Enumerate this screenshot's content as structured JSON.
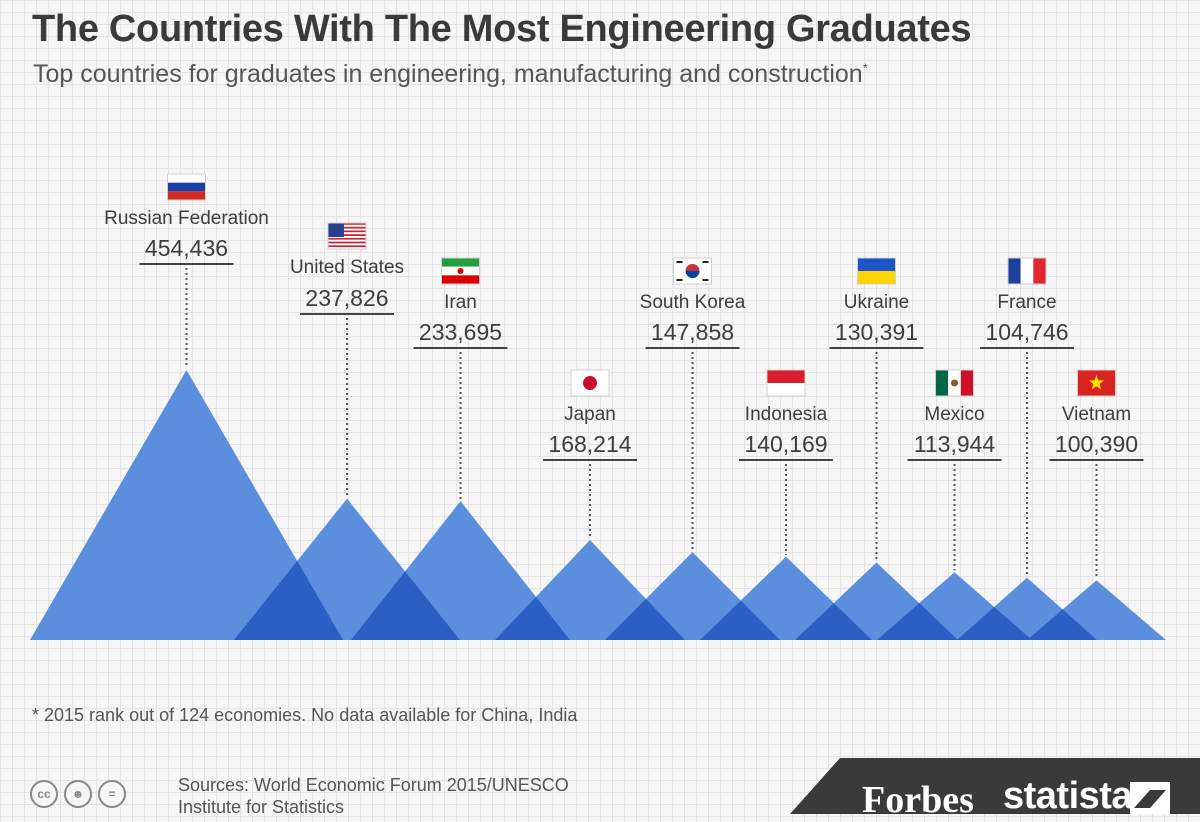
{
  "title": "The Countries With The Most Engineering Graduates",
  "subtitle": "Top countries for graduates in engineering, manufacturing and construction",
  "subtitle_mark": "*",
  "footnote": "* 2015 rank out of 124 economies. No data available for China, India",
  "sources_line1": "Sources: World Economic Forum 2015/UNESCO",
  "sources_line2": "Institute for Statistics",
  "brand_forbes": "Forbes",
  "brand_statista": "statista",
  "license_icons": [
    "cc-icon",
    "attribution-icon",
    "no-derivatives-icon"
  ],
  "colors": {
    "triangle": "#5b8fdd",
    "overlap": "#2c5fc4",
    "brand_band": "#3a3a3a"
  },
  "chart_data": {
    "type": "bar",
    "title": "The Countries With The Most Engineering Graduates",
    "subtitle": "Top countries for graduates in engineering, manufacturing and construction*",
    "unit": "graduates",
    "categories": [
      "Russian Federation",
      "United States",
      "Iran",
      "Japan",
      "South Korea",
      "Indonesia",
      "Ukraine",
      "Mexico",
      "France",
      "Vietnam"
    ],
    "values": [
      454436,
      237826,
      233695,
      168214,
      147858,
      140169,
      130391,
      113944,
      104746,
      100390
    ],
    "value_labels": [
      "454,436",
      "237,826",
      "233,695",
      "168,214",
      "147,858",
      "140,169",
      "130,391",
      "113,944",
      "104,746",
      "100,390"
    ],
    "flags": [
      "russia-flag-icon",
      "usa-flag-icon",
      "iran-flag-icon",
      "japan-flag-icon",
      "south-korea-flag-icon",
      "indonesia-flag-icon",
      "ukraine-flag-icon",
      "mexico-flag-icon",
      "france-flag-icon",
      "vietnam-flag-icon"
    ],
    "ylim": [
      0,
      454436
    ],
    "grid": true
  }
}
